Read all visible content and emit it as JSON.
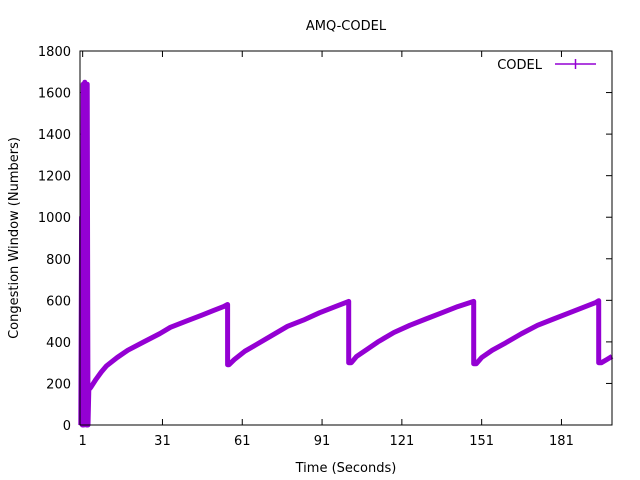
{
  "chart_data": {
    "type": "line",
    "title": "AMQ-CODEL",
    "xlabel": "Time (Seconds)",
    "ylabel": "Congestion Window (Numbers)",
    "xlim": [
      0,
      200
    ],
    "ylim": [
      0,
      1800
    ],
    "x_ticks": [
      1,
      31,
      61,
      91,
      121,
      151,
      181
    ],
    "y_ticks": [
      0,
      200,
      400,
      600,
      800,
      1000,
      1200,
      1400,
      1600,
      1800
    ],
    "grid": false,
    "legend_position": "top-right",
    "series": [
      {
        "name": "CODEL",
        "color": "#9400d3",
        "marker": "plus",
        "points": [
          [
            0.3,
            0
          ],
          [
            0.6,
            1000
          ],
          [
            0.9,
            0
          ],
          [
            1.2,
            1640
          ],
          [
            1.5,
            0
          ],
          [
            1.8,
            1650
          ],
          [
            2.1,
            1000
          ],
          [
            2.4,
            0
          ],
          [
            2.7,
            1640
          ],
          [
            3.0,
            0
          ],
          [
            3.3,
            170
          ],
          [
            4,
            180
          ],
          [
            6,
            220
          ],
          [
            8,
            255
          ],
          [
            10,
            285
          ],
          [
            14,
            325
          ],
          [
            18,
            360
          ],
          [
            24,
            400
          ],
          [
            30,
            440
          ],
          [
            34,
            470
          ],
          [
            40,
            500
          ],
          [
            46,
            530
          ],
          [
            50,
            550
          ],
          [
            54,
            570
          ],
          [
            55.5,
            580
          ],
          [
            55.5,
            290
          ],
          [
            56,
            290
          ],
          [
            58,
            315
          ],
          [
            62,
            355
          ],
          [
            66,
            385
          ],
          [
            72,
            430
          ],
          [
            78,
            475
          ],
          [
            84,
            505
          ],
          [
            90,
            540
          ],
          [
            96,
            570
          ],
          [
            101,
            595
          ],
          [
            101,
            300
          ],
          [
            102,
            300
          ],
          [
            104,
            330
          ],
          [
            108,
            365
          ],
          [
            112,
            400
          ],
          [
            118,
            445
          ],
          [
            124,
            480
          ],
          [
            130,
            510
          ],
          [
            136,
            540
          ],
          [
            142,
            570
          ],
          [
            148,
            595
          ],
          [
            148,
            295
          ],
          [
            149,
            295
          ],
          [
            151,
            325
          ],
          [
            155,
            360
          ],
          [
            160,
            395
          ],
          [
            166,
            440
          ],
          [
            172,
            480
          ],
          [
            178,
            510
          ],
          [
            184,
            540
          ],
          [
            190,
            570
          ],
          [
            194,
            590
          ],
          [
            195,
            598
          ],
          [
            195,
            300
          ],
          [
            196,
            300
          ],
          [
            198,
            315
          ],
          [
            200,
            330
          ]
        ]
      }
    ]
  }
}
